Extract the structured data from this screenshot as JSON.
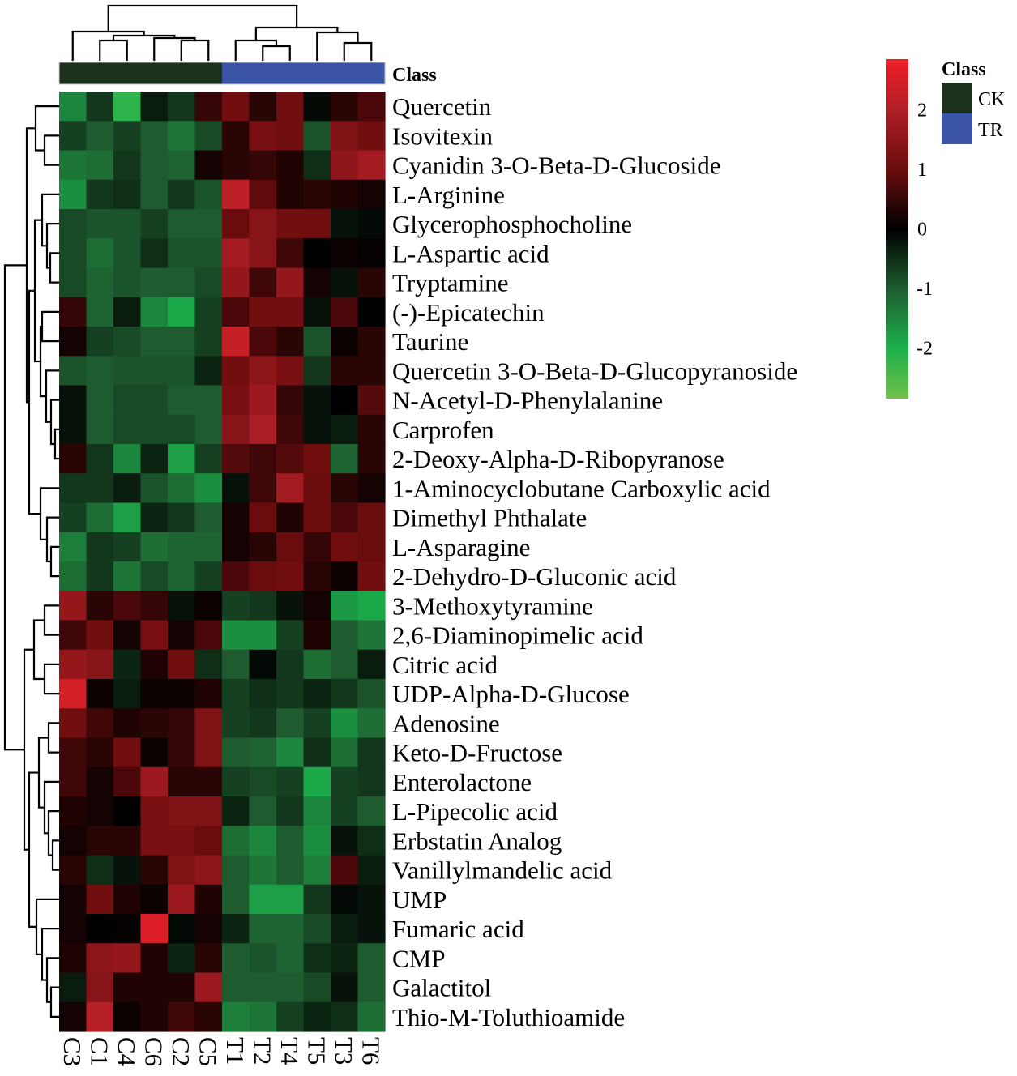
{
  "chart_data": {
    "type": "heatmap",
    "columns": [
      "C3",
      "C1",
      "C4",
      "C6",
      "C2",
      "C5",
      "T1",
      "T2",
      "T4",
      "T5",
      "T3",
      "T6"
    ],
    "column_class": [
      "CK",
      "CK",
      "CK",
      "CK",
      "CK",
      "CK",
      "TR",
      "TR",
      "TR",
      "TR",
      "TR",
      "TR"
    ],
    "rows": [
      "Quercetin",
      "Isovitexin",
      "Cyanidin 3-O-Beta-D-Glucoside",
      "L-Arginine",
      "Glycerophosphocholine",
      "L-Aspartic acid",
      "Tryptamine",
      "(-)-Epicatechin",
      "Taurine",
      "Quercetin 3-O-Beta-D-Glucopyranoside",
      "N-Acetyl-D-Phenylalanine",
      "Carprofen",
      "2-Deoxy-Alpha-D-Ribopyranose",
      "1-Aminocyclobutane Carboxylic acid",
      "Dimethyl Phthalate",
      "L-Asparagine",
      "2-Dehydro-D-Gluconic acid",
      "3-Methoxytyramine",
      "2,6-Diaminopimelic acid",
      "Citric acid",
      "UDP-Alpha-D-Glucose",
      "Adenosine",
      "Keto-D-Fructose",
      "Enterolactone",
      "L-Pipecolic acid",
      "Erbstatin Analog",
      "Vanillylmandelic acid",
      "UMP",
      "Fumaric acid",
      "CMP",
      "Galactitol",
      "Thio-M-Toluthioamide"
    ],
    "values": [
      [
        -1.5,
        -0.6,
        -2.2,
        -0.3,
        -0.6,
        0.5,
        1.1,
        0.4,
        1.1,
        -0.1,
        0.4,
        0.7
      ],
      [
        -0.7,
        -1.0,
        -0.7,
        -1.0,
        -1.3,
        -0.8,
        0.4,
        1.2,
        1.1,
        -0.9,
        1.3,
        1.1
      ],
      [
        -1.3,
        -1.2,
        -0.6,
        -1.0,
        -1.1,
        0.2,
        0.4,
        0.5,
        0.3,
        -0.5,
        1.5,
        1.8
      ],
      [
        -1.6,
        -0.6,
        -0.5,
        -1.0,
        -0.6,
        -0.9,
        2.2,
        0.9,
        0.3,
        0.4,
        0.3,
        0.2
      ],
      [
        -0.8,
        -0.9,
        -0.9,
        -0.7,
        -1.0,
        -1.0,
        1.0,
        1.4,
        1.1,
        1.1,
        -0.2,
        -0.1
      ],
      [
        -0.8,
        -1.2,
        -0.9,
        -0.5,
        -0.9,
        -0.9,
        1.8,
        1.4,
        0.6,
        0.0,
        0.1,
        0.05
      ],
      [
        -0.8,
        -1.1,
        -0.9,
        -1.0,
        -1.0,
        -0.8,
        1.6,
        0.6,
        1.6,
        0.2,
        -0.2,
        0.4
      ],
      [
        0.5,
        -1.1,
        -0.3,
        -1.5,
        -1.9,
        -0.7,
        0.7,
        1.1,
        1.1,
        -0.2,
        0.7,
        0.0
      ],
      [
        0.2,
        -0.7,
        -0.8,
        -1.0,
        -1.0,
        -0.7,
        2.3,
        0.7,
        0.4,
        -0.9,
        0.1,
        0.4
      ],
      [
        -0.9,
        -1.0,
        -0.9,
        -0.9,
        -0.9,
        -0.4,
        1.1,
        1.5,
        1.2,
        -0.6,
        0.4,
        0.4
      ],
      [
        -0.2,
        -1.0,
        -0.8,
        -0.8,
        -1.0,
        -1.0,
        1.2,
        1.7,
        0.5,
        -0.2,
        0.0,
        0.8
      ],
      [
        -0.2,
        -1.0,
        -0.8,
        -0.8,
        -0.8,
        -1.0,
        1.4,
        1.9,
        0.6,
        -0.2,
        -0.3,
        0.4
      ],
      [
        0.4,
        -0.6,
        -1.5,
        -0.4,
        -1.8,
        -0.7,
        0.8,
        0.6,
        0.8,
        1.1,
        -1.1,
        0.4
      ],
      [
        -0.6,
        -0.6,
        -0.3,
        -0.9,
        -1.2,
        -1.6,
        -0.2,
        0.6,
        1.8,
        1.0,
        0.4,
        0.2
      ],
      [
        -0.7,
        -1.2,
        -1.8,
        -0.4,
        -0.6,
        -1.0,
        0.2,
        1.0,
        0.3,
        1.0,
        0.7,
        1.0
      ],
      [
        -1.4,
        -0.6,
        -0.7,
        -1.2,
        -1.1,
        -1.1,
        0.2,
        0.4,
        1.0,
        0.5,
        1.1,
        1.0
      ],
      [
        -1.2,
        -0.6,
        -1.3,
        -0.8,
        -1.1,
        -0.7,
        0.7,
        1.0,
        1.1,
        0.4,
        0.1,
        1.1
      ],
      [
        1.6,
        0.4,
        0.7,
        0.5,
        -0.2,
        0.1,
        -0.7,
        -0.6,
        -0.2,
        0.2,
        -1.7,
        -1.9
      ],
      [
        0.6,
        1.1,
        0.2,
        1.2,
        0.2,
        0.7,
        -1.6,
        -1.6,
        -0.7,
        0.3,
        -1.0,
        -1.3
      ],
      [
        1.6,
        1.4,
        -0.4,
        0.3,
        1.1,
        -0.5,
        -1.0,
        -0.1,
        -0.6,
        -1.2,
        -1.0,
        -0.3
      ],
      [
        2.5,
        0.1,
        -0.3,
        0.1,
        0.1,
        0.3,
        -0.7,
        -0.5,
        -0.6,
        -0.4,
        -0.6,
        -0.9
      ],
      [
        1.1,
        0.6,
        0.3,
        0.4,
        0.5,
        1.3,
        -0.7,
        -0.6,
        -1.0,
        -0.7,
        -1.6,
        -1.2
      ],
      [
        0.6,
        0.4,
        1.1,
        0.1,
        0.5,
        1.3,
        -1.0,
        -1.1,
        -1.5,
        -0.5,
        -1.2,
        -0.6
      ],
      [
        0.6,
        0.2,
        0.7,
        1.7,
        0.4,
        0.4,
        -0.7,
        -0.8,
        -0.7,
        -1.9,
        -0.7,
        -0.6
      ],
      [
        0.3,
        0.2,
        0.0,
        1.2,
        1.3,
        1.3,
        -0.4,
        -1.0,
        -0.6,
        -1.5,
        -0.7,
        -1.0
      ],
      [
        0.2,
        0.4,
        0.4,
        1.2,
        1.2,
        1.0,
        -1.2,
        -1.5,
        -1.0,
        -1.6,
        -0.2,
        -0.5
      ],
      [
        0.4,
        -0.5,
        -0.2,
        0.4,
        1.3,
        1.5,
        -1.0,
        -1.3,
        -1.0,
        -1.4,
        0.7,
        -0.3
      ],
      [
        0.2,
        1.1,
        0.3,
        0.1,
        1.7,
        0.3,
        -1.0,
        -1.8,
        -1.8,
        -0.6,
        -0.1,
        -0.2
      ],
      [
        0.2,
        0.0,
        0.05,
        2.6,
        -0.1,
        0.2,
        -0.4,
        -1.1,
        -1.1,
        -0.8,
        -0.3,
        -0.2
      ],
      [
        0.3,
        1.5,
        1.6,
        0.3,
        -0.4,
        0.4,
        -1.0,
        -0.9,
        -1.1,
        -0.5,
        -0.4,
        -1.0
      ],
      [
        -0.3,
        1.4,
        0.3,
        0.3,
        0.3,
        1.7,
        -1.0,
        -1.0,
        -1.0,
        -0.8,
        -0.2,
        -1.0
      ],
      [
        0.2,
        2.1,
        0.1,
        0.3,
        0.6,
        0.4,
        -1.4,
        -1.3,
        -0.7,
        -0.4,
        -0.5,
        -1.2
      ]
    ],
    "color_scale": {
      "range": [
        -2.85,
        2.85
      ],
      "ticks": [
        "2",
        "1",
        "0",
        "-1",
        "-2"
      ],
      "tick_values": [
        2,
        1,
        0,
        -1,
        -2
      ],
      "colors": {
        "low": "#72c04a",
        "mid_low": "#1bb04b",
        "mid": "#000000",
        "high": "#ee1f26"
      }
    },
    "annotation_label": "Class",
    "legend": {
      "title": "Class",
      "entries": [
        {
          "label": "CK",
          "color": "#1c311c"
        },
        {
          "label": "TR",
          "color": "#3b54a5"
        }
      ],
      "placement": "right"
    },
    "dendrograms": {
      "rows": true,
      "columns": true
    }
  }
}
